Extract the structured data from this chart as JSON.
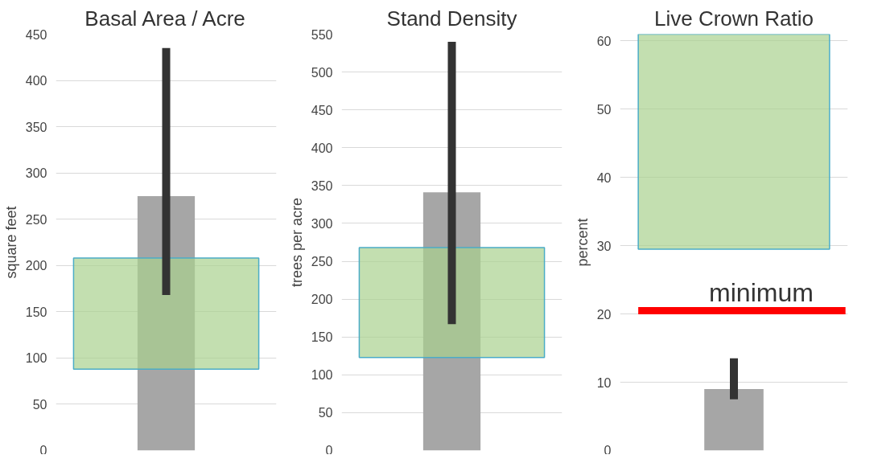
{
  "chart_data": [
    {
      "type": "bar",
      "title": "Basal Area / Acre",
      "ylabel": "square feet",
      "categories": [
        null
      ],
      "values": [
        275
      ],
      "color": "#a6a6a6",
      "errors": [
        [
          168,
          435
        ]
      ],
      "ylim": [
        0,
        450
      ],
      "yticks": [
        0,
        50,
        100,
        150,
        200,
        250,
        300,
        350,
        400,
        450
      ],
      "grid": "y",
      "bands": [
        {
          "axis": "y",
          "from": 88,
          "to": 208,
          "label": null,
          "color": "#a9d18e"
        }
      ]
    },
    {
      "type": "bar",
      "title": "Stand Density",
      "ylabel": "trees per acre",
      "categories": [
        null
      ],
      "values": [
        341
      ],
      "color": "#a6a6a6",
      "errors": [
        [
          167,
          540
        ]
      ],
      "ylim": [
        0,
        550
      ],
      "yticks": [
        0,
        50,
        100,
        150,
        200,
        250,
        300,
        350,
        400,
        450,
        500,
        550
      ],
      "grid": "y",
      "bands": [
        {
          "axis": "y",
          "from": 123,
          "to": 268,
          "label": null,
          "color": "#a9d18e"
        }
      ]
    },
    {
      "type": "bar",
      "title": "Live Crown Ratio",
      "ylabel": "percent",
      "categories": [
        null
      ],
      "values": [
        9
      ],
      "color": "#a6a6a6",
      "errors": [
        [
          7.5,
          13.5
        ]
      ],
      "ylim": [
        0,
        61
      ],
      "yticks": [
        0,
        10,
        20,
        30,
        40,
        50,
        60
      ],
      "grid": "y",
      "bands": [
        {
          "axis": "y",
          "from": 29.5,
          "to": 61,
          "label": null,
          "color": "#a9d18e"
        }
      ],
      "ref_lines": [
        {
          "axis": "y",
          "value": 20.5,
          "label": "minimum",
          "color": "#ff0000"
        }
      ]
    }
  ]
}
